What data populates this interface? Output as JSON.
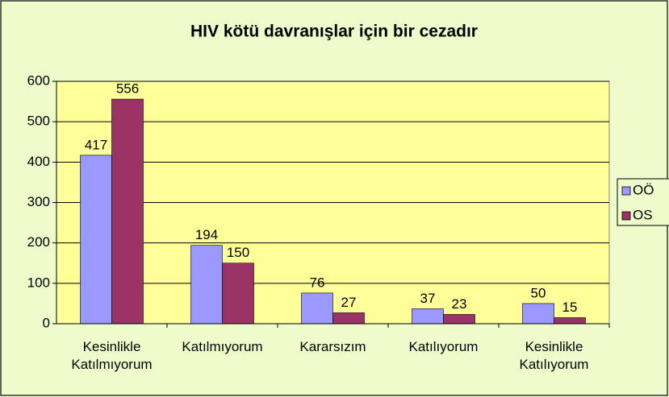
{
  "chart_data": {
    "type": "bar",
    "title": "HIV kötü davranışlar için bir cezadır",
    "categories": [
      "Kesinlikle Katılmıyorum",
      "Katılmıyorum",
      "Kararsızım",
      "Katılıyorum",
      "Kesinlikle Katılıyorum"
    ],
    "series": [
      {
        "name": "OÖ",
        "color": "#9999ff",
        "values": [
          417,
          194,
          76,
          37,
          50
        ]
      },
      {
        "name": "OS",
        "color": "#993366",
        "values": [
          556,
          150,
          27,
          23,
          15
        ]
      }
    ],
    "ylim": [
      0,
      600
    ],
    "yticks": [
      0,
      100,
      200,
      300,
      400,
      500,
      600
    ],
    "grid": true,
    "legend": "right"
  }
}
